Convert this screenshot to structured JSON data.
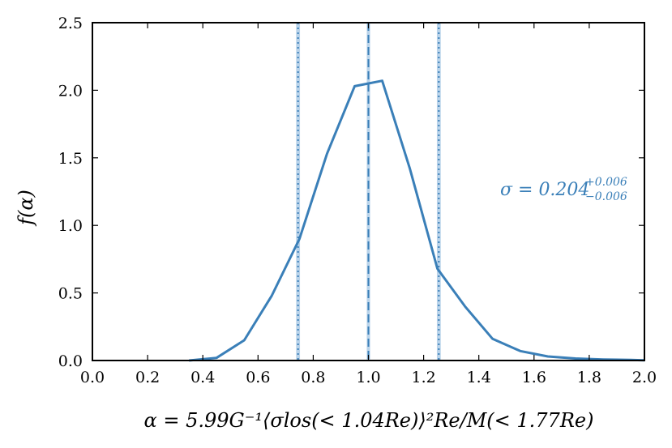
{
  "chart_data": {
    "type": "line",
    "title": "",
    "xlabel": "α = 5.99G⁻¹⟨σlos(< 1.04Re)⟩²Re/M(< 1.77Re)",
    "ylabel": "f(α)",
    "xlim": [
      0.0,
      2.0
    ],
    "ylim": [
      0.0,
      2.5
    ],
    "x_ticks": [
      "0.0",
      "0.2",
      "0.4",
      "0.6",
      "0.8",
      "1.0",
      "1.2",
      "1.4",
      "1.6",
      "1.8",
      "2.0"
    ],
    "y_ticks": [
      "0.0",
      "0.5",
      "1.0",
      "1.5",
      "2.0",
      "2.5"
    ],
    "grid": false,
    "series": [
      {
        "x": [
          0.35,
          0.45,
          0.55,
          0.65,
          0.75,
          0.85,
          0.95,
          1.05,
          1.15,
          1.25,
          1.35,
          1.45,
          1.55,
          1.65,
          1.75,
          1.85,
          1.95,
          2.0
        ],
        "values": [
          0.0,
          0.02,
          0.15,
          0.48,
          0.9,
          1.53,
          2.03,
          2.07,
          1.42,
          0.68,
          0.4,
          0.16,
          0.07,
          0.03,
          0.015,
          0.008,
          0.004,
          0.002
        ],
        "color": "#3a7fb8"
      }
    ],
    "vertical_lines": [
      {
        "x": 0.745,
        "style": "dotted",
        "band": [
          0.738,
          0.752
        ]
      },
      {
        "x": 1.0,
        "style": "dashed",
        "band": [
          0.994,
          1.006
        ]
      },
      {
        "x": 1.255,
        "style": "dotted",
        "band": [
          1.248,
          1.262
        ]
      }
    ],
    "annotation": {
      "prefix": "σ = 0.204",
      "sup": "+0.006",
      "sub": "−0.006",
      "color": "#3a7fb8"
    },
    "colors": {
      "line": "#3a7fb8",
      "band": "#b9d3ea"
    }
  }
}
